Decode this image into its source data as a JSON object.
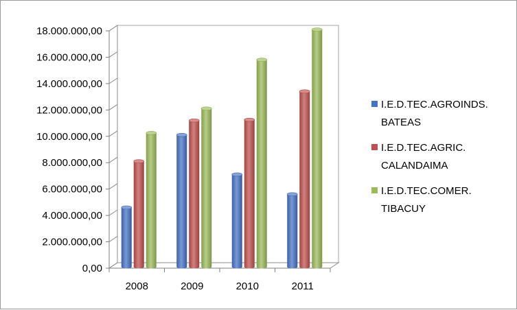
{
  "chart_data": {
    "type": "bar",
    "categories": [
      "2008",
      "2009",
      "2010",
      "2011"
    ],
    "series": [
      {
        "name": "I.E.D.TEC.AGROINDS. BATEAS",
        "label_lines": [
          "I.E.D.TEC.AGROINDS.",
          "BATEAS"
        ],
        "color": "#4472c4",
        "values": [
          4500000,
          10000000,
          7000000,
          5500000
        ]
      },
      {
        "name": "I.E.D.TEC.AGRIC. CALANDAIMA",
        "label_lines": [
          "I.E.D.TEC.AGRIC.",
          "CALANDAIMA"
        ],
        "color": "#c0504d",
        "values": [
          8000000,
          11100000,
          11150000,
          13300000
        ]
      },
      {
        "name": "I.E.D.TEC.COMER. TIBACUY",
        "label_lines": [
          "I.E.D.TEC.COMER.",
          "TIBACUY"
        ],
        "color": "#9bbb59",
        "values": [
          10150000,
          12000000,
          15700000,
          18000000
        ]
      }
    ],
    "y_ticks": [
      "0,00",
      "2.000.000,00",
      "4.000.000,00",
      "6.000.000,00",
      "8.000.000,00",
      "10.000.000,00",
      "12.000.000,00",
      "14.000.000,00",
      "16.000.000,00",
      "18.000.000,00"
    ],
    "ylim": [
      0,
      18000000
    ],
    "legend_position": "right",
    "grid": false
  }
}
